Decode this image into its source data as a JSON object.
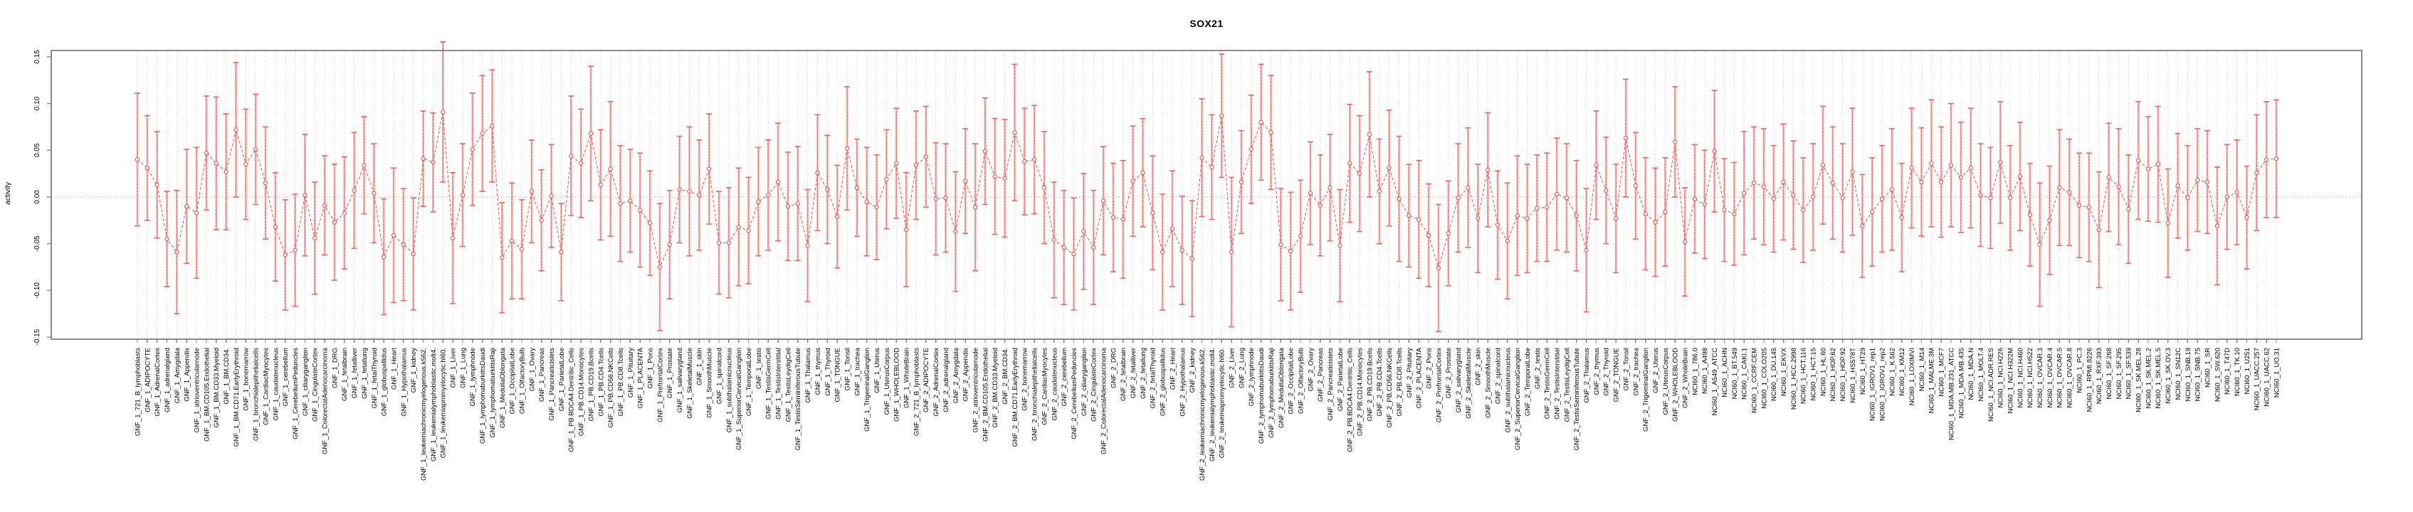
{
  "title": "SOX21",
  "colors": {
    "ci_bar": "#f7a8a3",
    "ci_core_dash": "#e85550",
    "ci_cap": "#ee6a65",
    "series_line": "#e85550",
    "marker_stroke": "#e85550",
    "marker_fill": "#ffffff",
    "grid": "#cdcdcd",
    "zero_line": "#9f9f9f",
    "axis_box": "#7f7f7f",
    "tick": "#808080",
    "text": "#000000"
  },
  "chart_data": {
    "type": "line",
    "subtype": "error-bar-series",
    "title": "SOX21",
    "xlabel": "",
    "ylabel": "activity",
    "ylim": [
      -0.155,
      0.156
    ],
    "yticks": [
      0.15,
      0.1,
      0.05,
      0.0,
      -0.05,
      -0.1,
      -0.15
    ],
    "ytick_labels": [
      "0.15",
      "0.10",
      "0.05",
      "0.00",
      "-0.05",
      "-0.10",
      "-0.15"
    ],
    "grid": "vertical dotted line at every category; dotted horizontal line at 0",
    "legend": "none",
    "categories": [
      "GNF_1_721_B_lymphoblasts",
      "GNF_1_ADIPOCYTE",
      "GNF_1_AdrenalCortex",
      "GNF_1_adrenalgland",
      "GNF_1_Amygdala",
      "GNF_1_Appendix",
      "GNF_1_atrioventricularnode",
      "GNF_1_BM.CD105.Endothelial",
      "GNF_1_BM.CD33.Myeloid",
      "GNF_1_BM.CD34.",
      "GNF_1_BM.CD71.EarlyErythroid",
      "GNF_1_bonemarrow",
      "GNF_1_bronchialepithelialcells",
      "GNF_1_CardiacMyocytes",
      "GNF_1_caudatenucleus",
      "GNF_1_cerebellum",
      "GNF_1_CerebellumPeduncles",
      "GNF_1_ciliaryganglion",
      "GNF_1_CingulateCortex",
      "GNF_1_ColorectalAdenocarcinoma",
      "GNF_1_DRG",
      "GNF_1_fetalbrain",
      "GNF_1_fetalliver",
      "GNF_1_fetallung",
      "GNF_1_fetalThyroid",
      "GNF_1_globuspallidus",
      "GNF_1_Heart",
      "GNF_1_Hypothalamus",
      "GNF_1_kidney",
      "GNF_1_leukemiachronicmyelogenous.k562.",
      "GNF_1_leukemialymphoblastic.molt4.",
      "GNF_1_leukemiapromyelocytic.hl60.",
      "GNF_1_Liver",
      "GNF_1_Lung",
      "GNF_1_lymphnode",
      "GNF_1_lymphomaburkittsDaudi",
      "GNF_1_lymphomaburkittsRaji",
      "GNF_1_MedullaOblongata",
      "GNF_1_OccipitalLobe",
      "GNF_1_OlfactoryBulb",
      "GNF_1_Ovary",
      "GNF_1_Pancreas",
      "GNF_1_Pancreaticislets",
      "GNF_1_ParietalLobe",
      "GNF_1_PB.BDCA4.Dentritic_Cells",
      "GNF_1_PB.CD14.Monocytes",
      "GNF_1_PB.CD19.Bcells",
      "GNF_1_PB.CD4.Tcells",
      "GNF_1_PB.CD56.NKCells",
      "GNF_1_PB.CD8.Tcells",
      "GNF_1_Pituitary",
      "GNF_1_PLACENTA",
      "GNF_1_Pons",
      "GNF_1_PrefrontalCortex",
      "GNF_1_Prostate",
      "GNF_1_salivarygland",
      "GNF_1_SkeletalMuscle",
      "GNF_1_skin",
      "GNF_1_SmoothMuscle",
      "GNF_1_spinalcord",
      "GNF_1_subthalamicnucleus",
      "GNF_1_SuperiorCervicalGanglion",
      "GNF_1_TemporalLobe",
      "GNF_1_testis",
      "GNF_1_TestisGermCell",
      "GNF_1_TestisInterstitial",
      "GNF_1_TestisLeydigCell",
      "GNF_1_TestisSeminiferousTubule",
      "GNF_1_Thalamus",
      "GNF_1_thymus",
      "GNF_1_Thyroid",
      "GNF_1_TONGUE",
      "GNF_1_Tonsil",
      "GNF_1_trachea",
      "GNF_1_TrigeminalGanglion",
      "GNF_1_Uterus",
      "GNF_1_UterusCorpus",
      "GNF_1_WHOLEBLOOD",
      "GNF_1_WholeBrain",
      "GNF_2_721_B_lymphoblasts",
      "GNF_2_ADIPOCYTE",
      "GNF_2_AdrenalCortex",
      "GNF_2_adrenalgland",
      "GNF_2_Amygdala",
      "GNF_2_Appendix",
      "GNF_2_atrioventricularnode",
      "GNF_2_BM.CD105.Endothelial",
      "GNF_2_BM.CD33.Myeloid",
      "GNF_2_BM.CD34.",
      "GNF_2_BM.CD71.EarlyErythroid",
      "GNF_2_bonemarrow",
      "GNF_2_bronchialepithelialcells",
      "GNF_2_CardiacMyocytes",
      "GNF_2_caudatenucleus",
      "GNF_2_cerebellum",
      "GNF_2_CerebellumPeduncles",
      "GNF_2_ciliaryganglion",
      "GNF_2_CingulateCortex",
      "GNF_2_ColorectalAdenocarcinoma",
      "GNF_2_DRG",
      "GNF_2_fetalbrain",
      "GNF_2_fetalliver",
      "GNF_2_fetallung",
      "GNF_2_fetalThyroid",
      "GNF_2_globuspallidus",
      "GNF_2_Heart",
      "GNF_2_Hypothalamus",
      "GNF_2_kidney",
      "GNF_2_leukemiachronicmyelogenous.k562.",
      "GNF_2_leukemialymphoblastic.molt4.",
      "GNF_2_leukemiapromyelocytic.hl60.",
      "GNF_2_Liver",
      "GNF_2_Lung",
      "GNF_2_lymphnode",
      "GNF_2_lymphomaburkittsDaudi",
      "GNF_2_lymphomaburkittsRaji",
      "GNF_2_MedullaOblongata",
      "GNF_2_OccipitalLobe",
      "GNF_2_OlfactoryBulb",
      "GNF_2_Ovary",
      "GNF_2_Pancreas",
      "GNF_2_Pancreaticislets",
      "GNF_2_ParietalLobe",
      "GNF_2_PB.BDCA4.Dentritic_Cells",
      "GNF_2_PB.CD14.Monocytes",
      "GNF_2_PB.CD19.Bcells",
      "GNF_2_PB.CD4.Tcells",
      "GNF_2_PB.CD56.NKCells",
      "GNF_2_PB.CD8.Tcells",
      "GNF_2_Pituitary",
      "GNF_2_PLACENTA",
      "GNF_2_Pons",
      "GNF_2_PrefrontalCortex",
      "GNF_2_Prostate",
      "GNF_2_salivarygland",
      "GNF_2_SkeletalMuscle",
      "GNF_2_skin",
      "GNF_2_SmoothMuscle",
      "GNF_2_spinalcord",
      "GNF_2_subthalamicnucleus",
      "GNF_2_SuperiorCervicalGanglion",
      "GNF_2_TemporalLobe",
      "GNF_2_testis",
      "GNF_2_TestisGermCell",
      "GNF_2_TestisInterstitial",
      "GNF_2_TestisLeydigCell",
      "GNF_2_TestisSeminiferousTubule",
      "GNF_2_Thalamus",
      "GNF_2_thymus",
      "GNF_2_Thyroid",
      "GNF_2_TONGUE",
      "GNF_2_Tonsil",
      "GNF_2_trachea",
      "GNF_2_TrigeminalGanglion",
      "GNF_2_Uterus",
      "GNF_2_UterusCorpus",
      "GNF_2_WHOLEBLOOD",
      "GNF_2_WholeBrain",
      "NCI60_1_786.0",
      "NCI60_1_A498",
      "NCI60_1_A549_ATCC",
      "NCI60_1_ACHN",
      "NCI60_1_BT.549",
      "NCI60_1_CAKI.1",
      "NCI60_1_CCRF.CEM",
      "NCI60_1_COLO205",
      "NCI60_1_DU.145",
      "NCI60_1_EKVX",
      "NCI60_1_HCC.2998",
      "NCI60_1_HCT.116",
      "NCI60_1_HCT.15",
      "NCI60_1_HL.60",
      "NCI60_1_HOP.62",
      "NCI60_1_HOP.92",
      "NCI60_1_HS578T",
      "NCI60_1_HT29",
      "NCI60_1_IGROV1_rep1",
      "NCI60_1_IGROV1_rep2",
      "NCI60_1_K.562",
      "NCI60_1_KM12",
      "NCI60_1_LOXIMVI",
      "NCI60_1_M14",
      "NCI60_1_MALME.3M",
      "NCI60_1_MCF7",
      "NCI60_1_MDA.MB.231_ATCC",
      "NCI60_1_MDA.MB.435",
      "NCI60_1_MDA.N",
      "NCI60_1_MOLT.4",
      "NCI60_1_NCI.ADR.RES",
      "NCI60_1_NCI.H226",
      "NCI60_1_NCI.H322M",
      "NCI60_1_NCI.H460",
      "NCI60_1_NCI.H522",
      "NCI60_1_OVCAR.3",
      "NCI60_1_OVCAR.4",
      "NCI60_1_OVCAR.5",
      "NCI60_1_OVCAR.8",
      "NCI60_1_PC.3",
      "NCI60_1_RPMI.8226",
      "NCI60_1_RXF.393",
      "NCI60_1_SF.268",
      "NCI60_1_SF.295",
      "NCI60_1_SF.539",
      "NCI60_1_SK.MEL.28",
      "NCI60_1_SK.MEL.2",
      "NCI60_1_SK.MEL.5",
      "NCI60_1_SK.OV.3",
      "NCI60_1_SN12C",
      "NCI60_1_SNB.19",
      "NCI60_1_SNB.75",
      "NCI60_1_SR",
      "NCI60_1_SW.620",
      "NCI60_1_T47D",
      "NCI60_1_TK.10",
      "NCI60_1_U251",
      "NCI60_1_UACC.257",
      "NCI60_1_UACC.62",
      "NCI60_1_UO.31"
    ],
    "series": [
      {
        "name": "activity",
        "values": [
          0.04,
          0.031,
          0.013,
          -0.045,
          -0.059,
          -0.01,
          -0.017,
          0.047,
          0.036,
          0.027,
          0.072,
          0.035,
          0.051,
          0.015,
          -0.032,
          -0.062,
          -0.057,
          0.002,
          -0.044,
          -0.009,
          -0.027,
          -0.017,
          0.007,
          0.034,
          0.004,
          -0.064,
          -0.041,
          -0.051,
          -0.061,
          0.041,
          0.037,
          0.091,
          -0.044,
          0.002,
          0.051,
          0.068,
          0.076,
          -0.065,
          -0.047,
          -0.056,
          0.006,
          -0.025,
          0.001,
          -0.059,
          0.044,
          0.036,
          0.068,
          0.013,
          0.03,
          -0.007,
          -0.004,
          -0.014,
          -0.028,
          -0.075,
          -0.051,
          0.008,
          0.006,
          0.002,
          0.03,
          -0.049,
          -0.049,
          -0.032,
          -0.036,
          -0.005,
          0.002,
          0.016,
          -0.01,
          -0.007,
          -0.052,
          0.026,
          0.008,
          -0.021,
          0.052,
          0.01,
          -0.005,
          -0.011,
          0.019,
          0.036,
          -0.035,
          0.034,
          0.043,
          -0.002,
          -0.001,
          -0.037,
          0.017,
          -0.011,
          0.049,
          0.022,
          0.02,
          0.069,
          0.038,
          0.04,
          0.01,
          -0.046,
          -0.054,
          -0.061,
          -0.037,
          -0.054,
          -0.004,
          -0.022,
          -0.024,
          0.017,
          0.026,
          -0.017,
          -0.059,
          -0.034,
          -0.057,
          -0.066,
          0.042,
          0.032,
          0.087,
          -0.059,
          0.016,
          0.051,
          0.08,
          0.069,
          -0.051,
          -0.058,
          -0.042,
          0.004,
          -0.009,
          0.01,
          -0.052,
          0.036,
          0.025,
          0.067,
          0.006,
          0.031,
          -0.002,
          -0.02,
          -0.024,
          -0.041,
          -0.076,
          -0.039,
          -0.001,
          0.01,
          -0.023,
          0.029,
          -0.03,
          -0.047,
          -0.02,
          -0.023,
          -0.012,
          -0.011,
          0.003,
          -0.001,
          -0.02,
          -0.057,
          0.034,
          0.007,
          -0.023,
          0.063,
          0.012,
          -0.018,
          -0.027,
          -0.016,
          0.059,
          -0.048,
          -0.002,
          -0.008,
          0.049,
          -0.014,
          -0.018,
          0.004,
          0.015,
          0.011,
          -0.002,
          0.016,
          0.002,
          -0.014,
          0.0,
          0.034,
          0.015,
          -0.001,
          0.027,
          -0.031,
          -0.016,
          -0.002,
          0.008,
          -0.022,
          0.031,
          0.016,
          0.036,
          0.016,
          0.034,
          0.021,
          0.031,
          0.002,
          -0.001,
          0.037,
          -0.001,
          0.022,
          -0.019,
          -0.051,
          -0.025,
          0.01,
          0.005,
          -0.009,
          -0.011,
          -0.035,
          0.021,
          0.011,
          -0.013,
          0.039,
          0.03,
          0.035,
          -0.028,
          0.012,
          -0.001,
          0.018,
          0.016,
          -0.031,
          0.0,
          0.005,
          -0.022,
          0.026,
          0.04,
          0.041
        ],
        "ci_half_width": [
          0.071,
          0.056,
          0.057,
          0.051,
          0.066,
          0.061,
          0.07,
          0.061,
          0.071,
          0.062,
          0.072,
          0.059,
          0.059,
          0.06,
          0.058,
          0.059,
          0.06,
          0.065,
          0.06,
          0.053,
          0.062,
          0.06,
          0.062,
          0.052,
          0.053,
          0.062,
          0.072,
          0.06,
          0.06,
          0.051,
          0.053,
          0.075,
          0.07,
          0.055,
          0.06,
          0.062,
          0.06,
          0.059,
          0.062,
          0.053,
          0.055,
          0.054,
          0.055,
          0.052,
          0.064,
          0.058,
          0.072,
          0.059,
          0.072,
          0.062,
          0.055,
          0.061,
          0.056,
          0.068,
          0.058,
          0.057,
          0.069,
          0.059,
          0.059,
          0.055,
          0.059,
          0.063,
          0.057,
          0.058,
          0.059,
          0.063,
          0.058,
          0.061,
          0.06,
          0.062,
          0.058,
          0.055,
          0.066,
          0.052,
          0.058,
          0.056,
          0.053,
          0.059,
          0.061,
          0.058,
          0.054,
          0.06,
          0.058,
          0.064,
          0.056,
          0.068,
          0.057,
          0.062,
          0.063,
          0.073,
          0.057,
          0.058,
          0.06,
          0.062,
          0.061,
          0.06,
          0.062,
          0.061,
          0.058,
          0.058,
          0.063,
          0.059,
          0.058,
          0.061,
          0.062,
          0.062,
          0.058,
          0.062,
          0.063,
          0.056,
          0.066,
          0.08,
          0.055,
          0.058,
          0.062,
          0.061,
          0.06,
          0.063,
          0.06,
          0.055,
          0.054,
          0.057,
          0.06,
          0.063,
          0.062,
          0.067,
          0.056,
          0.062,
          0.067,
          0.055,
          0.063,
          0.055,
          0.068,
          0.056,
          0.058,
          0.064,
          0.058,
          0.061,
          0.058,
          0.062,
          0.064,
          0.058,
          0.057,
          0.058,
          0.06,
          0.058,
          0.059,
          0.066,
          0.058,
          0.057,
          0.058,
          0.063,
          0.057,
          0.06,
          0.058,
          0.058,
          0.059,
          0.058,
          0.058,
          0.058,
          0.065,
          0.055,
          0.055,
          0.066,
          0.06,
          0.062,
          0.057,
          0.062,
          0.058,
          0.056,
          0.057,
          0.063,
          0.06,
          0.058,
          0.068,
          0.055,
          0.058,
          0.057,
          0.065,
          0.058,
          0.064,
          0.058,
          0.068,
          0.059,
          0.066,
          0.059,
          0.064,
          0.055,
          0.054,
          0.065,
          0.056,
          0.058,
          0.055,
          0.066,
          0.058,
          0.062,
          0.057,
          0.056,
          0.058,
          0.062,
          0.058,
          0.062,
          0.058,
          0.063,
          0.056,
          0.062,
          0.058,
          0.056,
          0.056,
          0.055,
          0.055,
          0.063,
          0.056,
          0.056,
          0.055,
          0.062,
          0.062,
          0.063
        ]
      }
    ]
  }
}
